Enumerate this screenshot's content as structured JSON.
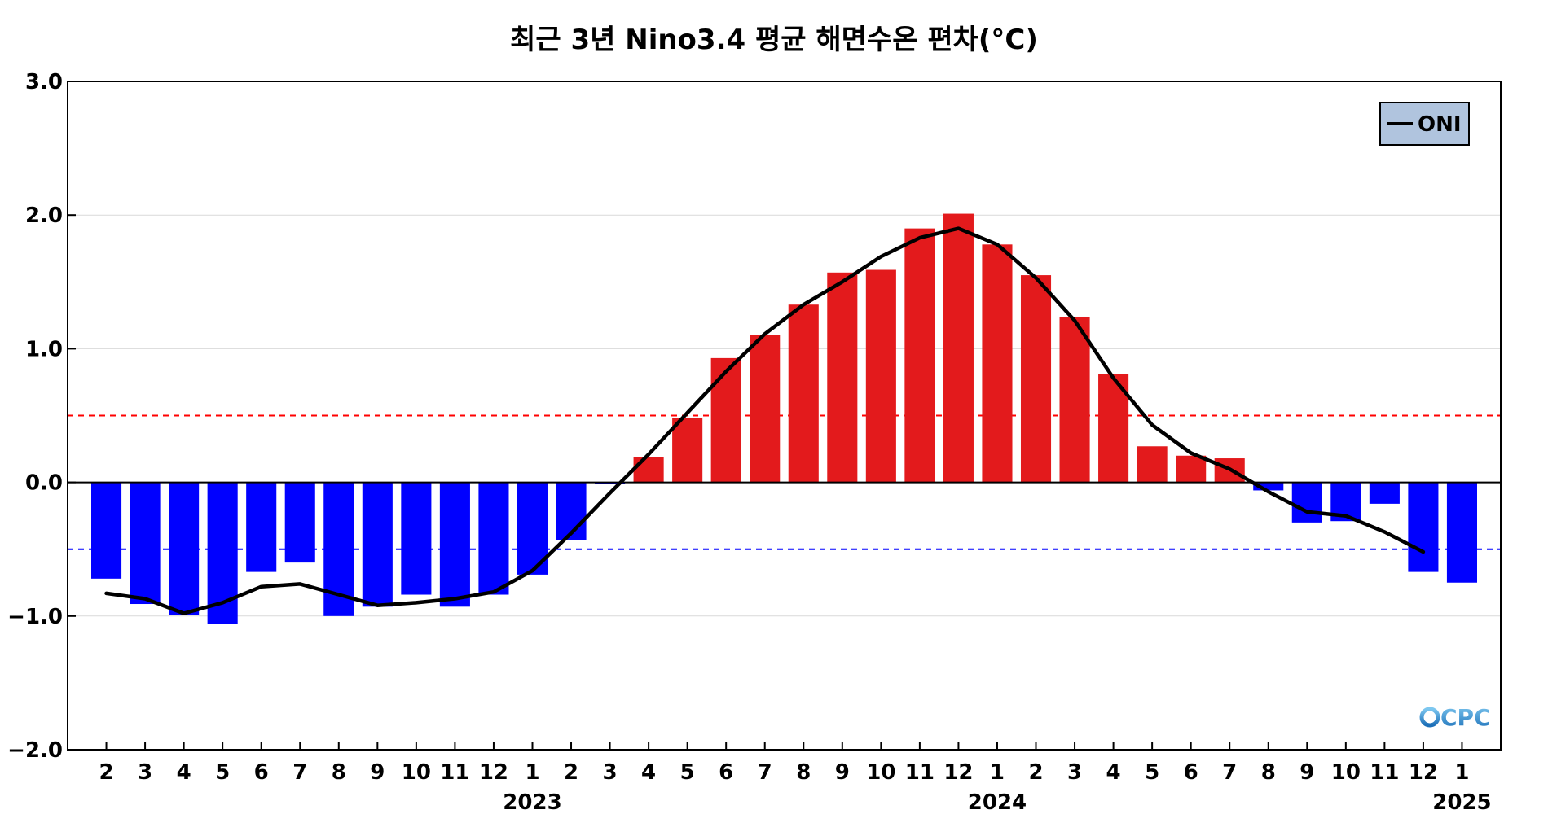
{
  "chart_data": {
    "type": "bar",
    "title": "최근 3년 Nino3.4 평균 해면수온 편차(°C)",
    "categories": [
      "2",
      "3",
      "4",
      "5",
      "6",
      "7",
      "8",
      "9",
      "10",
      "11",
      "12",
      "1",
      "2",
      "3",
      "4",
      "5",
      "6",
      "7",
      "8",
      "9",
      "10",
      "11",
      "12",
      "1",
      "2",
      "3",
      "4",
      "5",
      "6",
      "7",
      "8",
      "9",
      "10",
      "11",
      "12",
      "1"
    ],
    "year_labels": [
      {
        "label": "2023",
        "month_index": 11
      },
      {
        "label": "2024",
        "month_index": 23
      },
      {
        "label": "2025",
        "month_index": 35
      }
    ],
    "series": [
      {
        "type": "bar",
        "values": [
          -0.72,
          -0.91,
          -0.99,
          -1.06,
          -0.67,
          -0.6,
          -1.0,
          -0.93,
          -0.84,
          -0.93,
          -0.84,
          -0.69,
          -0.43,
          -0.01,
          0.19,
          0.48,
          0.93,
          1.1,
          1.33,
          1.57,
          1.59,
          1.9,
          2.01,
          1.78,
          1.55,
          1.24,
          0.81,
          0.27,
          0.2,
          0.18,
          -0.06,
          -0.3,
          -0.29,
          -0.16,
          -0.67,
          -0.75
        ],
        "positive_color": "#e31a1c",
        "negative_color": "#0000ff"
      },
      {
        "type": "line",
        "name": "ONI",
        "values": [
          -0.83,
          -0.87,
          -0.98,
          -0.9,
          -0.78,
          -0.76,
          -0.84,
          -0.92,
          -0.9,
          -0.87,
          -0.82,
          -0.66,
          -0.38,
          -0.08,
          0.21,
          0.52,
          0.83,
          1.11,
          1.33,
          1.5,
          1.69,
          1.83,
          1.9,
          1.78,
          1.53,
          1.21,
          0.78,
          0.43,
          0.22,
          0.1,
          -0.07,
          -0.22,
          -0.25,
          -0.37,
          -0.52,
          null
        ],
        "color": "#000000"
      }
    ],
    "reference_lines": [
      {
        "value": 0.5,
        "color": "#ff0000",
        "style": "dashed"
      },
      {
        "value": -0.5,
        "color": "#0000ff",
        "style": "dashed"
      }
    ],
    "ylim": [
      -2.0,
      3.0
    ],
    "yticks": [
      -2.0,
      -1.0,
      0.0,
      1.0,
      2.0,
      3.0
    ],
    "ytick_labels": [
      "−2.0",
      "−1.0",
      "0.0",
      "1.0",
      "2.0",
      "3.0"
    ],
    "grid": true,
    "legend": {
      "position": "top-right",
      "entries": [
        "ONI"
      ],
      "background": "#b0c4de"
    },
    "watermark": "CPC"
  }
}
